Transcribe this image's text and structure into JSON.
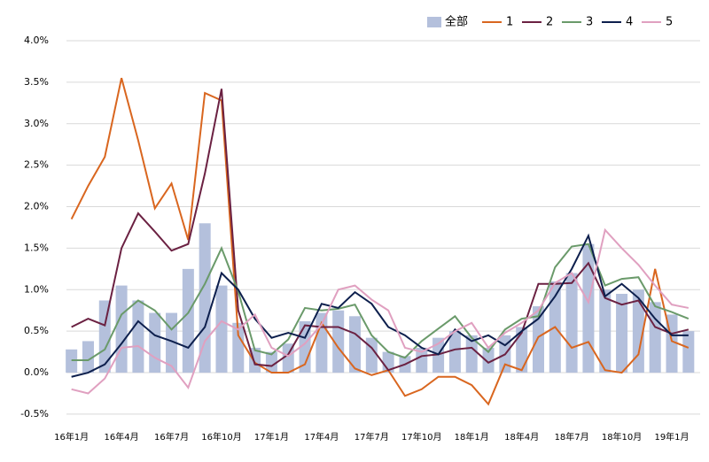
{
  "chart_data": {
    "type": "bar-line",
    "categories": [
      "16年1月",
      null,
      null,
      "16年4月",
      null,
      null,
      "16年7月",
      null,
      null,
      "16年10月",
      null,
      null,
      "17年1月",
      null,
      null,
      "17年4月",
      null,
      null,
      "17年7月",
      null,
      null,
      "17年10月",
      null,
      null,
      "18年1月",
      null,
      null,
      "18年4月",
      null,
      null,
      "18年7月",
      null,
      null,
      "18年10月",
      null,
      null,
      "19年1月",
      null
    ],
    "series": [
      {
        "name": "全部",
        "type": "bar",
        "color": "#b4c0dc",
        "values": [
          0.28,
          0.38,
          0.87,
          1.05,
          0.87,
          0.72,
          0.72,
          1.25,
          1.8,
          1.05,
          0.6,
          0.3,
          0.25,
          0.35,
          0.62,
          0.72,
          0.75,
          0.68,
          0.42,
          0.25,
          0.2,
          0.3,
          0.42,
          0.5,
          0.45,
          0.3,
          0.45,
          0.55,
          0.8,
          1.1,
          1.2,
          1.55,
          1.0,
          0.95,
          1.0,
          0.85,
          0.7,
          0.5
        ]
      },
      {
        "name": "1",
        "type": "line",
        "color": "#d9661f",
        "values": [
          1.85,
          2.25,
          2.6,
          3.55,
          2.8,
          1.98,
          2.28,
          1.6,
          3.37,
          3.28,
          0.45,
          0.12,
          0.0,
          0.0,
          0.1,
          0.6,
          0.3,
          0.05,
          -0.03,
          0.03,
          -0.28,
          -0.2,
          -0.05,
          -0.05,
          -0.15,
          -0.38,
          0.1,
          0.03,
          0.43,
          0.55,
          0.3,
          0.37,
          0.03,
          0.0,
          0.22,
          1.25,
          0.38,
          0.3
        ]
      },
      {
        "name": "2",
        "type": "line",
        "color": "#6b2142",
        "values": [
          0.55,
          0.65,
          0.57,
          1.5,
          1.92,
          1.7,
          1.47,
          1.55,
          2.4,
          3.42,
          0.75,
          0.1,
          0.08,
          0.22,
          0.57,
          0.55,
          0.55,
          0.47,
          0.3,
          0.03,
          0.1,
          0.2,
          0.22,
          0.28,
          0.3,
          0.12,
          0.22,
          0.48,
          1.07,
          1.07,
          1.08,
          1.32,
          0.9,
          0.82,
          0.87,
          0.55,
          0.47,
          0.52
        ]
      },
      {
        "name": "3",
        "type": "line",
        "color": "#6a9a6a",
        "values": [
          0.15,
          0.15,
          0.28,
          0.7,
          0.87,
          0.75,
          0.52,
          0.72,
          1.07,
          1.5,
          0.98,
          0.27,
          0.22,
          0.4,
          0.78,
          0.75,
          0.77,
          0.82,
          0.45,
          0.25,
          0.18,
          0.38,
          0.53,
          0.68,
          0.42,
          0.25,
          0.52,
          0.65,
          0.68,
          1.27,
          1.52,
          1.55,
          1.05,
          1.13,
          1.15,
          0.8,
          0.73,
          0.65
        ]
      },
      {
        "name": "4",
        "type": "line",
        "color": "#0d1f4d",
        "values": [
          -0.05,
          0.0,
          0.1,
          0.35,
          0.62,
          0.45,
          0.38,
          0.3,
          0.55,
          1.2,
          1.0,
          0.65,
          0.42,
          0.48,
          0.42,
          0.83,
          0.78,
          0.97,
          0.83,
          0.55,
          0.45,
          0.3,
          0.22,
          0.52,
          0.38,
          0.45,
          0.33,
          0.5,
          0.65,
          0.92,
          1.25,
          1.65,
          0.92,
          1.07,
          0.9,
          0.65,
          0.45,
          0.45
        ]
      },
      {
        "name": "5",
        "type": "line",
        "color": "#e0a0c0",
        "values": [
          -0.2,
          -0.25,
          -0.07,
          0.3,
          0.32,
          0.18,
          0.08,
          -0.18,
          0.38,
          0.62,
          0.52,
          0.7,
          0.3,
          0.2,
          0.35,
          0.58,
          1.0,
          1.05,
          0.88,
          0.75,
          0.3,
          0.25,
          0.35,
          0.5,
          0.6,
          0.3,
          0.48,
          0.6,
          0.75,
          1.08,
          1.2,
          0.85,
          1.72,
          1.5,
          1.3,
          1.05,
          0.82,
          0.78
        ]
      }
    ],
    "ylim": [
      -0.65,
      4.0
    ],
    "yticks": [
      {
        "value": -0.5,
        "label": "-0.5%"
      },
      {
        "value": 0,
        "label": "0.0%"
      },
      {
        "value": 0.5,
        "label": "0.5%"
      },
      {
        "value": 1,
        "label": "1.0%"
      },
      {
        "value": 1.5,
        "label": "1.5%"
      },
      {
        "value": 2,
        "label": "2.0%"
      },
      {
        "value": 2.5,
        "label": "2.5%"
      },
      {
        "value": 3,
        "label": "3.0%"
      },
      {
        "value": 3.5,
        "label": "3.5%"
      },
      {
        "value": 4,
        "label": "4.0%"
      }
    ],
    "grid": true,
    "legend": "top-right"
  }
}
